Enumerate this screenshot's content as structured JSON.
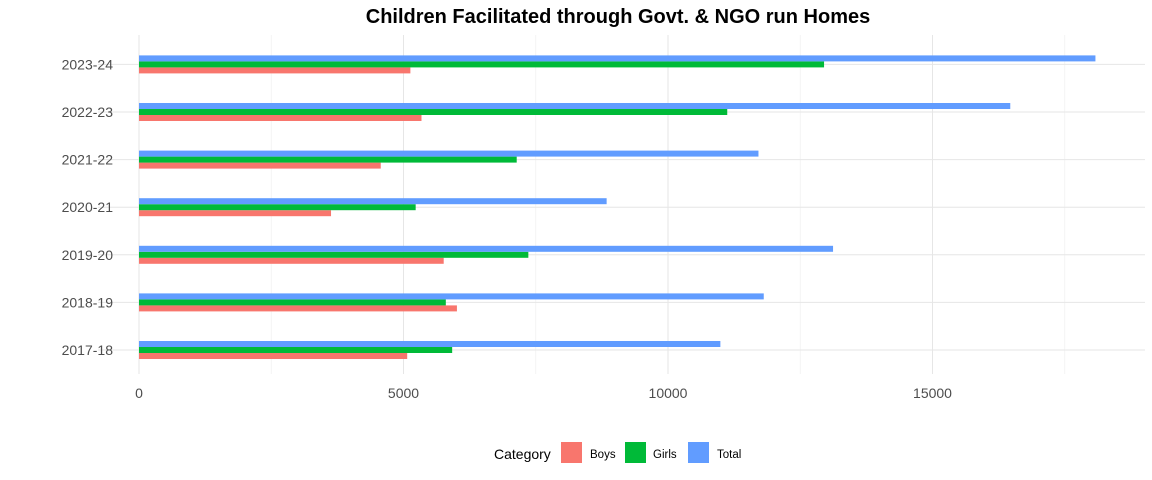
{
  "chart_data": {
    "type": "bar",
    "orientation": "horizontal",
    "title": "Children Facilitated through Govt. & NGO run Homes",
    "xlabel": "",
    "ylabel": "",
    "categories": [
      "2017-18",
      "2018-19",
      "2019-20",
      "2020-21",
      "2021-22",
      "2022-23",
      "2023-24"
    ],
    "series": [
      {
        "name": "Boys",
        "color": "#F8766D",
        "values": [
          5070,
          6010,
          5760,
          3630,
          4570,
          5340,
          5130
        ]
      },
      {
        "name": "Girls",
        "color": "#00BA38",
        "values": [
          5920,
          5800,
          7360,
          5230,
          7140,
          11120,
          12950
        ]
      },
      {
        "name": "Total",
        "color": "#619CFF",
        "values": [
          10990,
          11810,
          13120,
          8840,
          11710,
          16470,
          18080
        ]
      }
    ],
    "xlim": [
      -900,
      19000
    ],
    "x_ticks": [
      0,
      5000,
      10000,
      15000
    ],
    "x_tick_labels": [
      "0",
      "5000",
      "10000",
      "15000"
    ],
    "grid": true,
    "legend": {
      "title": "Category",
      "position": "bottom",
      "labels": [
        "Boys",
        "Girls",
        "Total"
      ]
    }
  }
}
